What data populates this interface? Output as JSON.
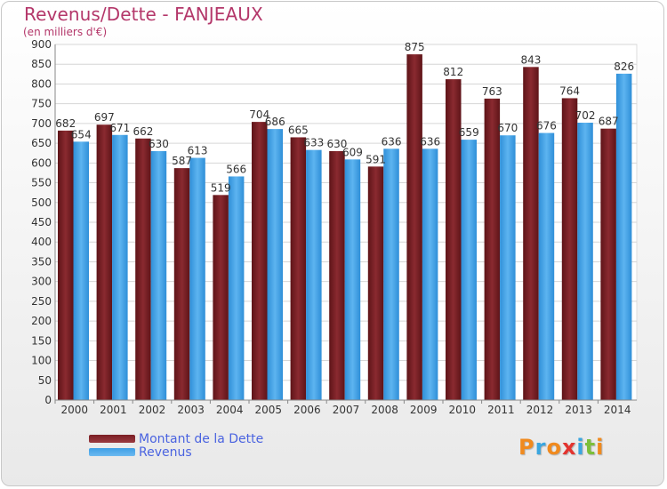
{
  "title": "Revenus/Dette - FANJEAUX",
  "subtitle": "(en milliers d'€)",
  "logo_text": "Proxiti",
  "legend": {
    "debt_label": "Montant de la Dette",
    "revenue_label": "Revenus"
  },
  "colors": {
    "title": "#b4376a",
    "debt": "#7a1f24",
    "revenue": "#3d9fe6",
    "legend_text": "#4a63e0",
    "logo": [
      "#f08a1e",
      "#3aa6e0",
      "#f08a1e",
      "#e3342f",
      "#3aa6e0",
      "#7cbf3a",
      "#f08a1e"
    ]
  },
  "chart_data": {
    "type": "bar",
    "categories": [
      "2000",
      "2001",
      "2002",
      "2003",
      "2004",
      "2005",
      "2006",
      "2007",
      "2008",
      "2009",
      "2010",
      "2011",
      "2012",
      "2013",
      "2014"
    ],
    "series": [
      {
        "name": "Montant de la Dette",
        "values": [
          682,
          697,
          662,
          587,
          519,
          704,
          665,
          630,
          591,
          875,
          812,
          763,
          843,
          764,
          687
        ]
      },
      {
        "name": "Revenus",
        "values": [
          654,
          671,
          630,
          613,
          566,
          686,
          633,
          609,
          636,
          636,
          659,
          670,
          676,
          702,
          826
        ]
      }
    ],
    "data_labels": [
      [
        "682",
        "697",
        "662",
        "587",
        "519",
        "704",
        "665",
        "630",
        "591",
        "875",
        "812",
        "763",
        "843",
        "764",
        "687"
      ],
      [
        "654",
        "671",
        "630",
        "613",
        "566",
        "686",
        "633",
        "609",
        "636",
        "636",
        "659",
        "670",
        "676",
        "702",
        "826"
      ]
    ],
    "y_ticks": [
      "0",
      "50",
      "100",
      "150",
      "200",
      "250",
      "300",
      "350",
      "400",
      "450",
      "500",
      "550",
      "600",
      "650",
      "700",
      "750",
      "800",
      "850",
      "900"
    ],
    "ylim": [
      0,
      900
    ],
    "grid": true,
    "legend_position": "bottom-left"
  }
}
